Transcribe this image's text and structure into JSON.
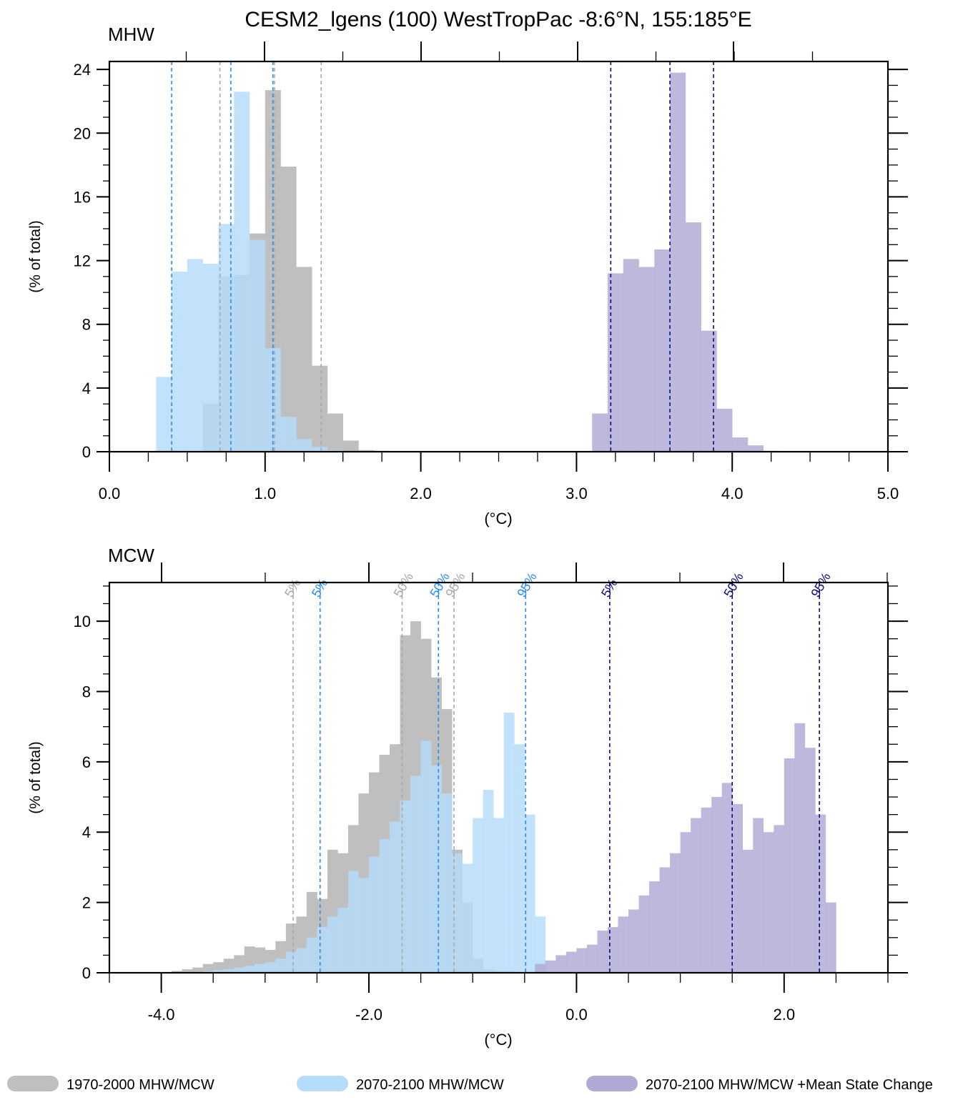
{
  "figure": {
    "title": "CESM2_lgens (100) WestTropPac  -8:6°N, 155:185°E",
    "legend": [
      {
        "label": "1970-2000 MHW/MCW",
        "color": "#bfbfbf"
      },
      {
        "label": "2070-2100 MHW/MCW",
        "color": "#b5dcfb"
      },
      {
        "label": "2070-2100 MHW/MCW +Mean State Change",
        "color": "#aeaad4"
      }
    ]
  },
  "chart_data": [
    {
      "type": "bar",
      "panel_label": "MHW",
      "xlabel": "(°C)",
      "ylabel": "(% of total)",
      "xlim": [
        0,
        5
      ],
      "ylim": [
        0,
        24.5
      ],
      "x_ticks": [
        "0.0",
        "1.0",
        "2.0",
        "3.0",
        "4.0",
        "5.0"
      ],
      "y_ticks": [
        "0",
        "4",
        "8",
        "12",
        "16",
        "20",
        "24"
      ],
      "bin_width": 0.1,
      "series": [
        {
          "key": "hist",
          "color": "#bfbfbf",
          "bin_left": [
            0.6,
            0.7,
            0.8,
            0.9,
            1.0,
            1.1,
            1.2,
            1.3,
            1.4,
            1.5,
            1.6,
            1.7
          ],
          "values": [
            3.0,
            11.0,
            11.1,
            13.7,
            22.7,
            17.9,
            11.6,
            5.4,
            2.4,
            0.7,
            0.1,
            0.05
          ]
        },
        {
          "key": "fut",
          "color": "#b5dcfb",
          "bin_left": [
            0.3,
            0.4,
            0.5,
            0.6,
            0.7,
            0.8,
            0.9,
            1.0,
            1.1,
            1.2,
            1.3,
            1.4
          ],
          "values": [
            4.7,
            11.3,
            12.1,
            11.8,
            14.3,
            22.6,
            13.3,
            6.5,
            2.2,
            0.8,
            0.3,
            0.1
          ]
        },
        {
          "key": "msc",
          "color": "#aeaad4",
          "bin_left": [
            3.1,
            3.2,
            3.3,
            3.4,
            3.5,
            3.6,
            3.7,
            3.8,
            3.9,
            4.0,
            4.1,
            4.2
          ],
          "values": [
            2.4,
            11.2,
            12.1,
            11.6,
            12.7,
            23.8,
            14.4,
            7.6,
            2.7,
            0.9,
            0.4,
            0.05
          ]
        }
      ],
      "percentile_lines": [
        {
          "x": 0.71,
          "color": "#a8a8a8"
        },
        {
          "x": 1.06,
          "color": "#a8a8a8"
        },
        {
          "x": 1.36,
          "color": "#a8a8a8"
        },
        {
          "x": 0.4,
          "color": "#2a8cf0"
        },
        {
          "x": 0.78,
          "color": "#2a8cf0"
        },
        {
          "x": 1.05,
          "color": "#2a8cf0"
        },
        {
          "x": 3.22,
          "color": "#0a0a80"
        },
        {
          "x": 3.6,
          "color": "#0a0a80"
        },
        {
          "x": 3.88,
          "color": "#0a0a80"
        }
      ]
    },
    {
      "type": "bar",
      "panel_label": "MCW",
      "xlabel": "(°C)",
      "ylabel": "(% of total)",
      "xlim": [
        -4.5,
        3
      ],
      "ylim": [
        0,
        11.1
      ],
      "x_ticks": [
        "-4.0",
        "-2.0",
        "0.0",
        "2.0"
      ],
      "y_ticks": [
        "0",
        "2",
        "4",
        "6",
        "8",
        "10"
      ],
      "bin_width": 0.1,
      "series": [
        {
          "key": "hist",
          "color": "#bfbfbf",
          "bin_left": [
            -4.0,
            -3.9,
            -3.8,
            -3.7,
            -3.6,
            -3.5,
            -3.4,
            -3.3,
            -3.2,
            -3.1,
            -3.0,
            -2.9,
            -2.8,
            -2.7,
            -2.6,
            -2.5,
            -2.4,
            -2.3,
            -2.2,
            -2.1,
            -2.0,
            -1.9,
            -1.8,
            -1.7,
            -1.6,
            -1.5,
            -1.4,
            -1.3,
            -1.2,
            -1.1,
            -1.0,
            -0.9,
            -0.8,
            -0.7,
            -0.6
          ],
          "values": [
            0.02,
            0.05,
            0.1,
            0.15,
            0.25,
            0.3,
            0.4,
            0.5,
            0.75,
            0.72,
            0.65,
            0.9,
            1.4,
            1.6,
            2.3,
            2.1,
            3.5,
            3.4,
            4.2,
            5.1,
            5.7,
            6.2,
            6.5,
            9.6,
            10.0,
            9.5,
            8.4,
            7.5,
            3.5,
            2.0,
            0.4,
            0.1,
            0.05,
            0.05,
            0.02
          ]
        },
        {
          "key": "fut",
          "color": "#b5dcfb",
          "bin_left": [
            -3.6,
            -3.5,
            -3.4,
            -3.3,
            -3.2,
            -3.1,
            -3.0,
            -2.9,
            -2.8,
            -2.7,
            -2.6,
            -2.5,
            -2.4,
            -2.3,
            -2.2,
            -2.1,
            -2.0,
            -1.9,
            -1.8,
            -1.7,
            -1.6,
            -1.5,
            -1.4,
            -1.3,
            -1.2,
            -1.1,
            -1.0,
            -0.9,
            -0.8,
            -0.7,
            -0.6,
            -0.5,
            -0.4
          ],
          "values": [
            0.05,
            0.08,
            0.1,
            0.15,
            0.2,
            0.25,
            0.3,
            0.4,
            0.6,
            0.7,
            1.0,
            1.3,
            1.6,
            1.85,
            2.9,
            2.7,
            3.3,
            3.8,
            4.3,
            4.9,
            5.6,
            6.6,
            5.9,
            5.1,
            3.4,
            3.1,
            4.4,
            5.2,
            4.4,
            7.4,
            6.5,
            4.5,
            1.6
          ]
        },
        {
          "key": "msc",
          "color": "#aeaad4",
          "bin_left": [
            -0.4,
            -0.3,
            -0.2,
            -0.1,
            0.0,
            0.1,
            0.2,
            0.3,
            0.4,
            0.5,
            0.6,
            0.7,
            0.8,
            0.9,
            1.0,
            1.1,
            1.2,
            1.3,
            1.4,
            1.5,
            1.6,
            1.7,
            1.8,
            1.9,
            2.0,
            2.1,
            2.2,
            2.3,
            2.4
          ],
          "values": [
            0.25,
            0.35,
            0.5,
            0.6,
            0.7,
            0.8,
            1.2,
            1.3,
            1.6,
            1.8,
            2.2,
            2.6,
            3.0,
            3.4,
            4.0,
            4.4,
            4.7,
            5.0,
            5.4,
            4.8,
            3.5,
            4.4,
            4.0,
            4.2,
            6.1,
            7.1,
            6.4,
            4.5,
            2.0
          ]
        }
      ],
      "percentile_lines": [
        {
          "x": -2.73,
          "label": "5%",
          "color": "#a8a8a8"
        },
        {
          "x": -1.68,
          "label": "50%",
          "color": "#a8a8a8"
        },
        {
          "x": -1.18,
          "label": "95%",
          "color": "#a8a8a8"
        },
        {
          "x": -2.47,
          "label": "5%",
          "color": "#2a8cf0"
        },
        {
          "x": -1.33,
          "label": "50%",
          "color": "#2a8cf0"
        },
        {
          "x": -0.49,
          "label": "95%",
          "color": "#2a8cf0"
        },
        {
          "x": 0.32,
          "label": "5%",
          "color": "#0a0a80"
        },
        {
          "x": 1.5,
          "label": "50%",
          "color": "#0a0a80"
        },
        {
          "x": 2.34,
          "label": "95%",
          "color": "#0a0a80"
        }
      ]
    }
  ]
}
